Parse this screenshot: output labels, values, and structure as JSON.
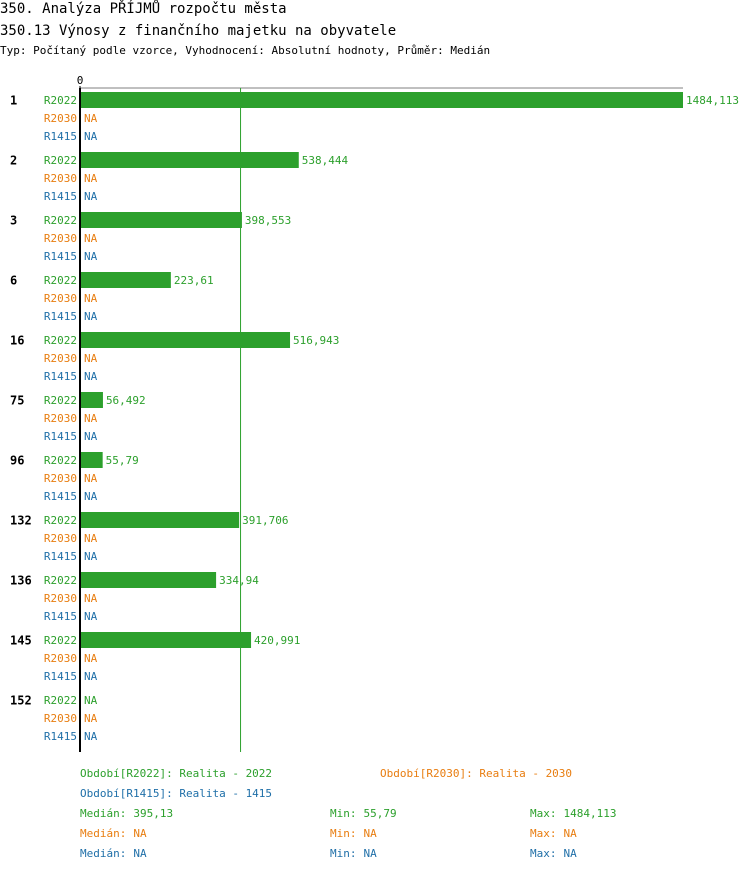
{
  "chart_data": {
    "type": "bar",
    "title": "350. Analýza PŘÍJMŮ rozpočtu města",
    "subtitle": "350.13 Výnosy z finančního majetku na obyvatele",
    "description": "Typ: Počítaný podle vzorce, Vyhodnocení: Absolutní hodnoty, Průměr: Medián",
    "categories": [
      "1",
      "2",
      "3",
      "6",
      "16",
      "75",
      "96",
      "132",
      "136",
      "145",
      "152"
    ],
    "xlim": [
      0,
      1484.113
    ],
    "xticks": [
      0
    ],
    "series": [
      {
        "name": "R2022",
        "color": "#2ca02c",
        "legend": "Období[R2022]: Realita - 2022",
        "values": [
          1484.113,
          538.444,
          398.553,
          223.61,
          516.943,
          56.492,
          55.79,
          391.706,
          334.94,
          420.991,
          null
        ],
        "value_labels": [
          "1484,113",
          "538,444",
          "398,553",
          "223,61",
          "516,943",
          "56,492",
          "55,79",
          "391,706",
          "334,94",
          "420,991",
          "NA"
        ],
        "stats": [
          {
            "label": "Medián:",
            "value": 395.13,
            "value_label": "395,13"
          },
          {
            "label": "Min:",
            "value": 55.79,
            "value_label": "55,79"
          },
          {
            "label": "Max:",
            "value": 1484.113,
            "value_label": "1484,113"
          }
        ]
      },
      {
        "name": "R2030",
        "color": "#e87d10",
        "legend": "Období[R2030]: Realita - 2030",
        "values": [
          null,
          null,
          null,
          null,
          null,
          null,
          null,
          null,
          null,
          null,
          null
        ],
        "value_labels": [
          "NA",
          "NA",
          "NA",
          "NA",
          "NA",
          "NA",
          "NA",
          "NA",
          "NA",
          "NA",
          "NA"
        ],
        "stats": [
          {
            "label": "Medián:",
            "value": null,
            "value_label": "NA"
          },
          {
            "label": "Min:",
            "value": null,
            "value_label": "NA"
          },
          {
            "label": "Max:",
            "value": null,
            "value_label": "NA"
          }
        ]
      },
      {
        "name": "R1415",
        "color": "#1f6fa8",
        "legend": "Období[R1415]: Realita - 1415",
        "values": [
          null,
          null,
          null,
          null,
          null,
          null,
          null,
          null,
          null,
          null,
          null
        ],
        "value_labels": [
          "NA",
          "NA",
          "NA",
          "NA",
          "NA",
          "NA",
          "NA",
          "NA",
          "NA",
          "NA",
          "NA"
        ],
        "stats": [
          {
            "label": "Medián:",
            "value": null,
            "value_label": "NA"
          },
          {
            "label": "Min:",
            "value": null,
            "value_label": "NA"
          },
          {
            "label": "Max:",
            "value": null,
            "value_label": "NA"
          }
        ]
      }
    ]
  }
}
